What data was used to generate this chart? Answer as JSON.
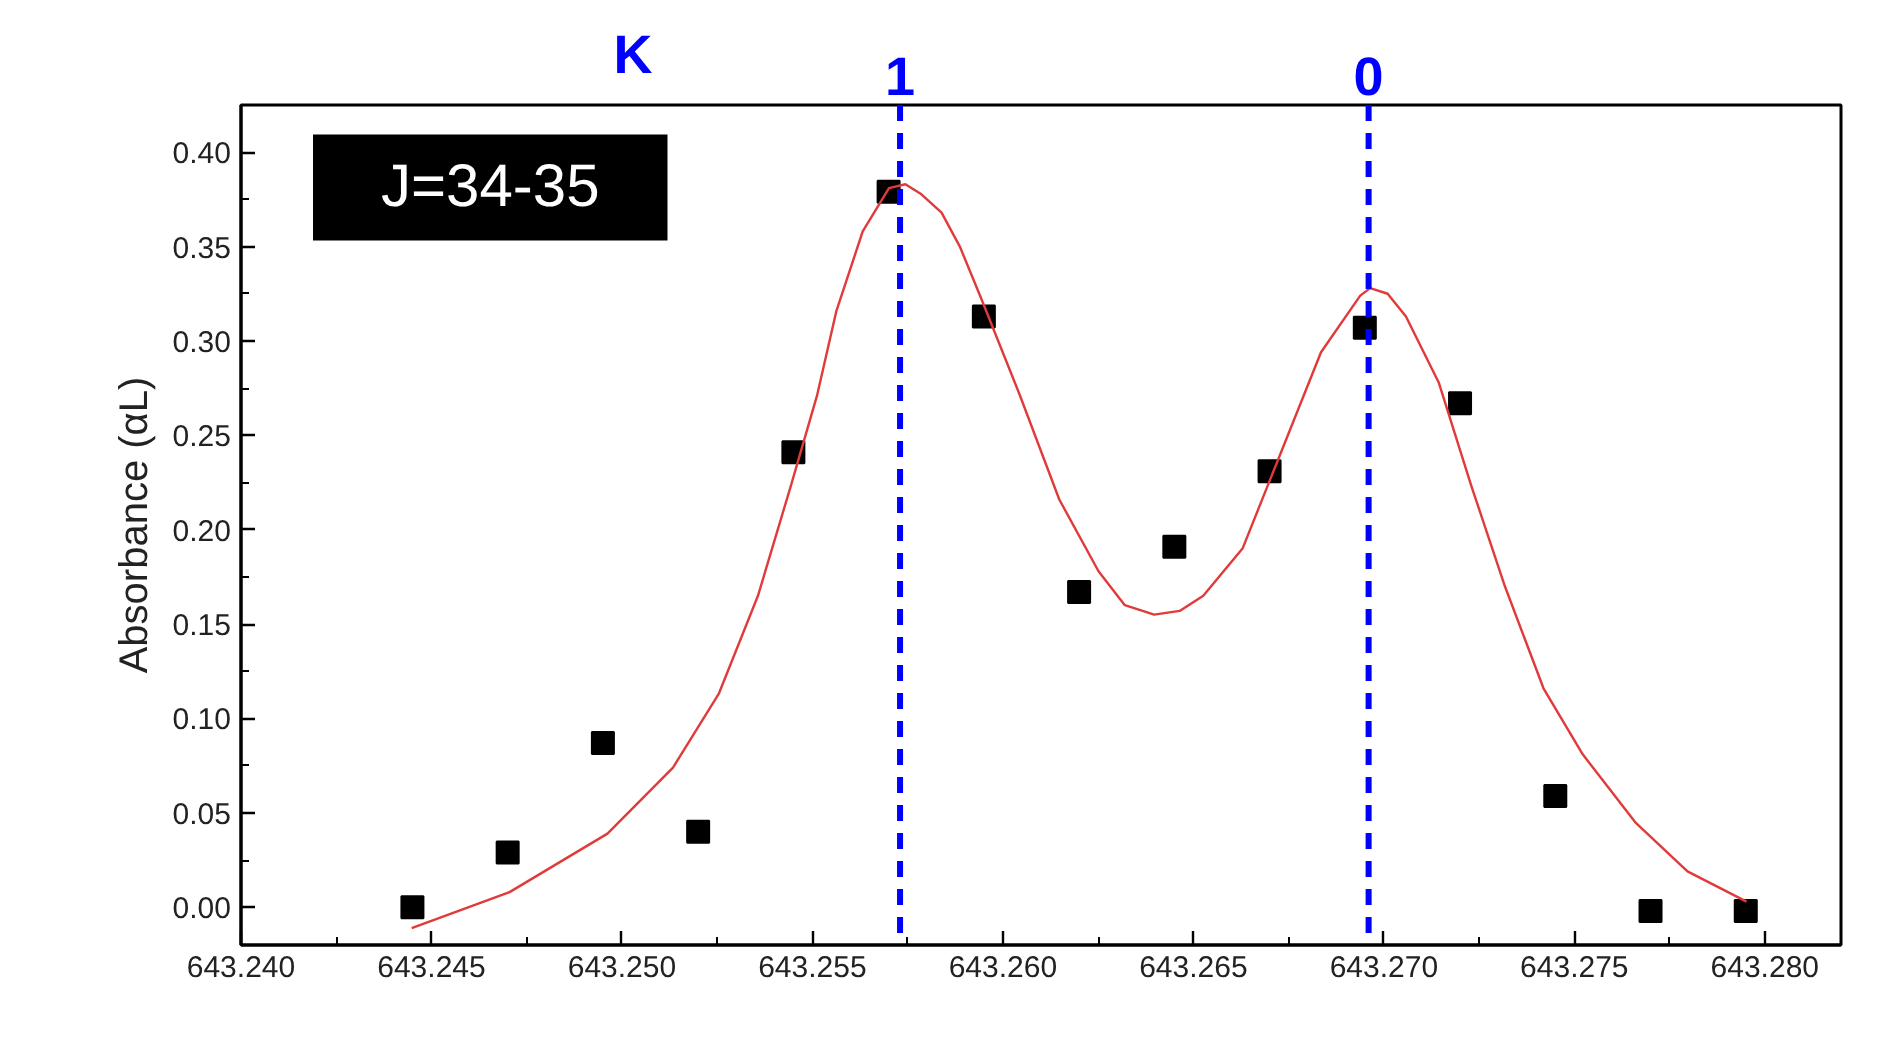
{
  "chart_data": {
    "type": "scatter",
    "ylabel": "Absorbance (αL)",
    "annotations": [
      "J=34-35",
      "K",
      "1",
      "0"
    ],
    "xlim": [
      643.24,
      643.282
    ],
    "ylim": [
      -0.02,
      0.425
    ],
    "xticks": [
      {
        "value": 643.24,
        "label": "643.240"
      },
      {
        "value": 643.2425,
        "label": null
      },
      {
        "value": 643.245,
        "label": "643.245"
      },
      {
        "value": 643.2475,
        "label": null
      },
      {
        "value": 643.25,
        "label": "643.250"
      },
      {
        "value": 643.2525,
        "label": null
      },
      {
        "value": 643.255,
        "label": "643.255"
      },
      {
        "value": 643.2575,
        "label": null
      },
      {
        "value": 643.26,
        "label": "643.260"
      },
      {
        "value": 643.2625,
        "label": null
      },
      {
        "value": 643.265,
        "label": "643.265"
      },
      {
        "value": 643.2675,
        "label": null
      },
      {
        "value": 643.27,
        "label": "643.270"
      },
      {
        "value": 643.2725,
        "label": null
      },
      {
        "value": 643.275,
        "label": "643.275"
      },
      {
        "value": 643.2775,
        "label": null
      },
      {
        "value": 643.28,
        "label": "643.280"
      }
    ],
    "yticks": [
      {
        "value": 0,
        "label": "0.00"
      },
      {
        "value": 0.025,
        "label": null
      },
      {
        "value": 0.05,
        "label": "0.05"
      },
      {
        "value": 0.075,
        "label": null
      },
      {
        "value": 0.1,
        "label": "0.10"
      },
      {
        "value": 0.125,
        "label": null
      },
      {
        "value": 0.15,
        "label": "0.15"
      },
      {
        "value": 0.175,
        "label": null
      },
      {
        "value": 0.2,
        "label": "0.20"
      },
      {
        "value": 0.225,
        "label": null
      },
      {
        "value": 0.25,
        "label": "0.25"
      },
      {
        "value": 0.275,
        "label": null
      },
      {
        "value": 0.3,
        "label": "0.30"
      },
      {
        "value": 0.325,
        "label": null
      },
      {
        "value": 0.35,
        "label": "0.35"
      },
      {
        "value": 0.375,
        "label": null
      },
      {
        "value": 0.4,
        "label": "0.40"
      }
    ],
    "series": [
      {
        "marker": "square",
        "color": "#000000",
        "x": [
          643.2445,
          643.247,
          643.2495,
          643.252,
          643.2545,
          643.257,
          643.2595,
          643.262,
          643.2645,
          643.267,
          643.2695,
          643.272,
          643.2745,
          643.277,
          643.2795
        ],
        "values": [
          0.0,
          0.029,
          0.087,
          0.04,
          0.241,
          0.379,
          0.313,
          0.167,
          0.191,
          0.231,
          0.307,
          0.267,
          0.059,
          -0.002,
          -0.002
        ]
      },
      {
        "type": "line",
        "color": "#e03a3a",
        "x": [
          643.24448,
          643.24705,
          643.24962,
          643.25134,
          643.25254,
          643.25357,
          643.25443,
          643.25512,
          643.25563,
          643.25632,
          643.25701,
          643.25744,
          643.25784,
          643.25839,
          643.25887,
          643.25942,
          643.26045,
          643.26148,
          643.26251,
          643.2632,
          643.26397,
          643.26464,
          643.26526,
          643.26629,
          643.26732,
          643.26835,
          643.26938,
          643.26964,
          643.2701,
          643.27058,
          643.27144,
          643.2723,
          643.27316,
          643.27419,
          643.27522,
          643.2766,
          643.27797,
          643.27952
        ],
        "values": [
          -0.011,
          0.008,
          0.039,
          0.074,
          0.113,
          0.165,
          0.223,
          0.271,
          0.316,
          0.358,
          0.381,
          0.383,
          0.378,
          0.368,
          0.35,
          0.323,
          0.271,
          0.216,
          0.178,
          0.16,
          0.155,
          0.157,
          0.165,
          0.19,
          0.242,
          0.294,
          0.324,
          0.328,
          0.325,
          0.313,
          0.278,
          0.223,
          0.171,
          0.116,
          0.081,
          0.045,
          0.019,
          0.003
        ]
      }
    ],
    "ref_lines": [
      {
        "axis": "x",
        "value": 643.2573,
        "color": "#0000ff",
        "line_style": "dashed"
      },
      {
        "axis": "x",
        "value": 643.2696,
        "color": "#0000ff",
        "line_style": "dashed"
      }
    ]
  }
}
